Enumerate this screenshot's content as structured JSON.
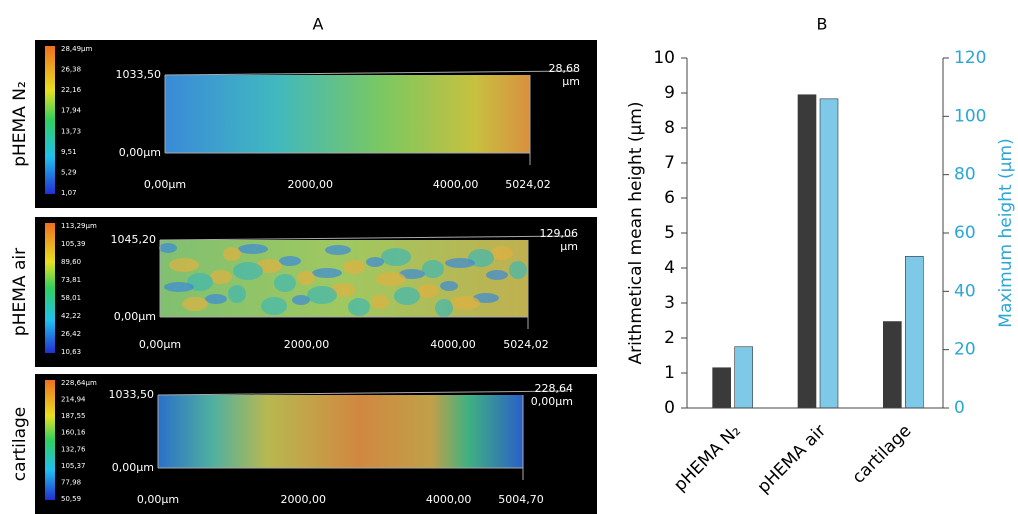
{
  "panel_a": {
    "label": "A",
    "images": [
      {
        "name": "pHEMA N₂",
        "scale": [
          "28,49µm",
          "26,38",
          "22,16",
          "17,94",
          "13,73",
          "9,51",
          "5,29",
          "1,07"
        ],
        "y_labels": [
          "1033,50",
          "0,00µm"
        ],
        "z_labels": [
          "28,68",
          "µm"
        ],
        "x_labels": [
          "0,00µm",
          "2000,00",
          "4000,00",
          "5024,02"
        ]
      },
      {
        "name": "pHEMA air",
        "scale": [
          "113,29µm",
          "105,39",
          "89,60",
          "73,81",
          "58,01",
          "42,22",
          "26,42",
          "10,63"
        ],
        "y_labels": [
          "1045,20",
          "0,00µm"
        ],
        "z_labels": [
          "129,06",
          "µm"
        ],
        "x_labels": [
          "0,00µm",
          "2000,00",
          "4000,00",
          "5024,02"
        ]
      },
      {
        "name": "cartilage",
        "scale": [
          "228,64µm",
          "214,94",
          "187,55",
          "160,16",
          "132,76",
          "105,37",
          "77,98",
          "50,59"
        ],
        "y_labels": [
          "1033,50",
          "0,00µm"
        ],
        "z_labels": [
          "228,64",
          "0,00µm"
        ],
        "x_labels": [
          "0,00µm",
          "2000,00",
          "4000,00",
          "5004,70"
        ]
      }
    ]
  },
  "chart_data": {
    "type": "bar",
    "title": "B",
    "categories": [
      "pHEMA N₂",
      "pHEMA air",
      "cartilage"
    ],
    "ylabel": "Arithmetical mean height (µm)",
    "y2label": "Maximum height (µm)",
    "series": [
      {
        "color": "#3a3a3a",
        "values": [
          1.15,
          8.95,
          2.47
        ]
      },
      {
        "color": "#7ec8e8",
        "axis": "y2",
        "values": [
          21,
          106,
          52
        ]
      }
    ],
    "ylim": [
      0,
      10
    ],
    "yticks": [
      0,
      1,
      2,
      3,
      4,
      5,
      6,
      7,
      8,
      9,
      10
    ],
    "y2lim": [
      0,
      120
    ],
    "y2ticks": [
      0,
      20,
      40,
      60,
      80,
      100,
      120
    ],
    "y2color": "#2aa7d6"
  }
}
